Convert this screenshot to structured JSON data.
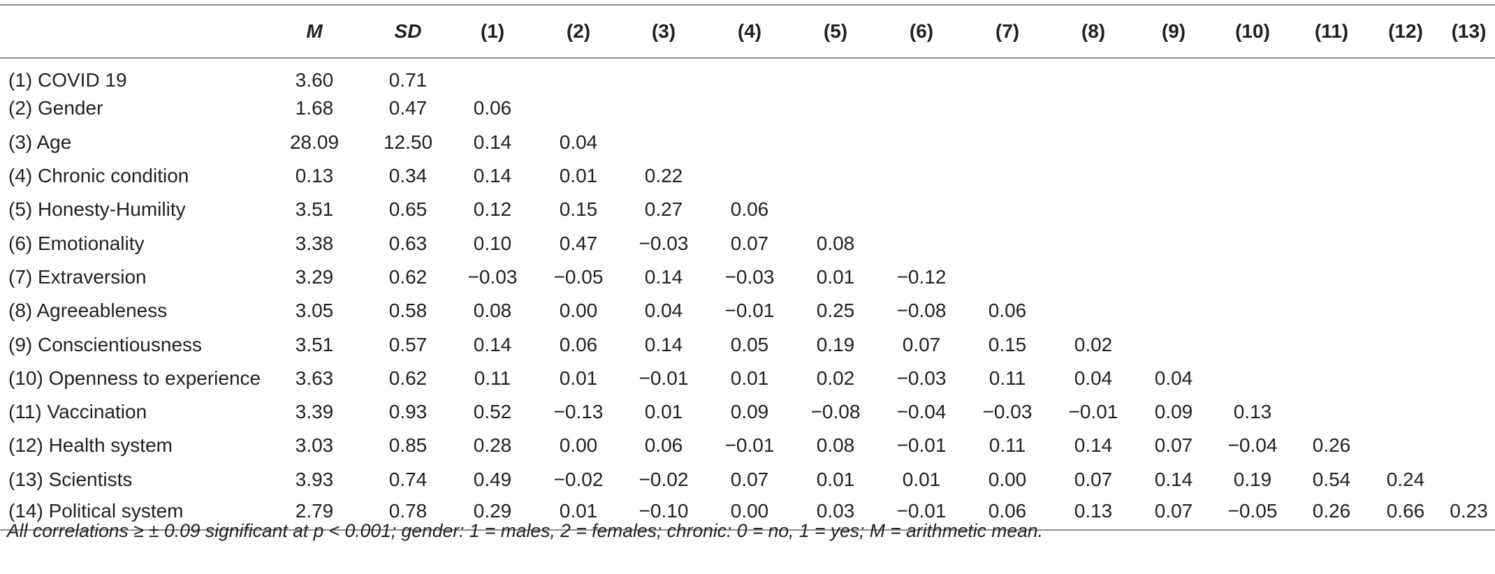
{
  "table": {
    "headers": [
      "",
      "M",
      "SD",
      "(1)",
      "(2)",
      "(3)",
      "(4)",
      "(5)",
      "(6)",
      "(7)",
      "(8)",
      "(9)",
      "(10)",
      "(11)",
      "(12)",
      "(13)"
    ],
    "rows": [
      {
        "label": "(1) COVID 19",
        "cells": [
          "3.60",
          "0.71",
          "",
          "",
          "",
          "",
          "",
          "",
          "",
          "",
          "",
          "",
          "",
          "",
          ""
        ]
      },
      {
        "label": "(2) Gender",
        "cells": [
          "1.68",
          "0.47",
          "0.06",
          "",
          "",
          "",
          "",
          "",
          "",
          "",
          "",
          "",
          "",
          "",
          ""
        ]
      },
      {
        "label": "(3) Age",
        "cells": [
          "28.09",
          "12.50",
          "0.14",
          "0.04",
          "",
          "",
          "",
          "",
          "",
          "",
          "",
          "",
          "",
          "",
          ""
        ]
      },
      {
        "label": "(4) Chronic condition",
        "cells": [
          "0.13",
          "0.34",
          "0.14",
          "0.01",
          "0.22",
          "",
          "",
          "",
          "",
          "",
          "",
          "",
          "",
          "",
          ""
        ]
      },
      {
        "label": "(5) Honesty-Humility",
        "cells": [
          "3.51",
          "0.65",
          "0.12",
          "0.15",
          "0.27",
          "0.06",
          "",
          "",
          "",
          "",
          "",
          "",
          "",
          "",
          ""
        ]
      },
      {
        "label": "(6) Emotionality",
        "cells": [
          "3.38",
          "0.63",
          "0.10",
          "0.47",
          "−0.03",
          "0.07",
          "0.08",
          "",
          "",
          "",
          "",
          "",
          "",
          "",
          ""
        ]
      },
      {
        "label": "(7) Extraversion",
        "cells": [
          "3.29",
          "0.62",
          "−0.03",
          "−0.05",
          "0.14",
          "−0.03",
          "0.01",
          "−0.12",
          "",
          "",
          "",
          "",
          "",
          "",
          ""
        ]
      },
      {
        "label": "(8) Agreeableness",
        "cells": [
          "3.05",
          "0.58",
          "0.08",
          "0.00",
          "0.04",
          "−0.01",
          "0.25",
          "−0.08",
          "0.06",
          "",
          "",
          "",
          "",
          "",
          ""
        ]
      },
      {
        "label": "(9) Conscientiousness",
        "cells": [
          "3.51",
          "0.57",
          "0.14",
          "0.06",
          "0.14",
          "0.05",
          "0.19",
          "0.07",
          "0.15",
          "0.02",
          "",
          "",
          "",
          "",
          ""
        ]
      },
      {
        "label": "(10) Openness to experience",
        "cells": [
          "3.63",
          "0.62",
          "0.11",
          "0.01",
          "−0.01",
          "0.01",
          "0.02",
          "−0.03",
          "0.11",
          "0.04",
          "0.04",
          "",
          "",
          "",
          ""
        ]
      },
      {
        "label": "(11) Vaccination",
        "cells": [
          "3.39",
          "0.93",
          "0.52",
          "−0.13",
          "0.01",
          "0.09",
          "−0.08",
          "−0.04",
          "−0.03",
          "−0.01",
          "0.09",
          "0.13",
          "",
          "",
          ""
        ]
      },
      {
        "label": "(12) Health system",
        "cells": [
          "3.03",
          "0.85",
          "0.28",
          "0.00",
          "0.06",
          "−0.01",
          "0.08",
          "−0.01",
          "0.11",
          "0.14",
          "0.07",
          "−0.04",
          "0.26",
          "",
          ""
        ]
      },
      {
        "label": "(13) Scientists",
        "cells": [
          "3.93",
          "0.74",
          "0.49",
          "−0.02",
          "−0.02",
          "0.07",
          "0.01",
          "0.01",
          "0.00",
          "0.07",
          "0.14",
          "0.19",
          "0.54",
          "0.24",
          ""
        ]
      },
      {
        "label": "(14) Political system",
        "cells": [
          "2.79",
          "0.78",
          "0.29",
          "0.01",
          "−0.10",
          "0.00",
          "0.03",
          "−0.01",
          "0.06",
          "0.13",
          "0.07",
          "−0.05",
          "0.26",
          "0.66",
          "0.23"
        ]
      }
    ]
  },
  "note": "All correlations ≥ ± 0.09 significant at p < 0.001; gender: 1 = males, 2 = females; chronic: 0 = no, 1 = yes; M = arithmetic mean."
}
